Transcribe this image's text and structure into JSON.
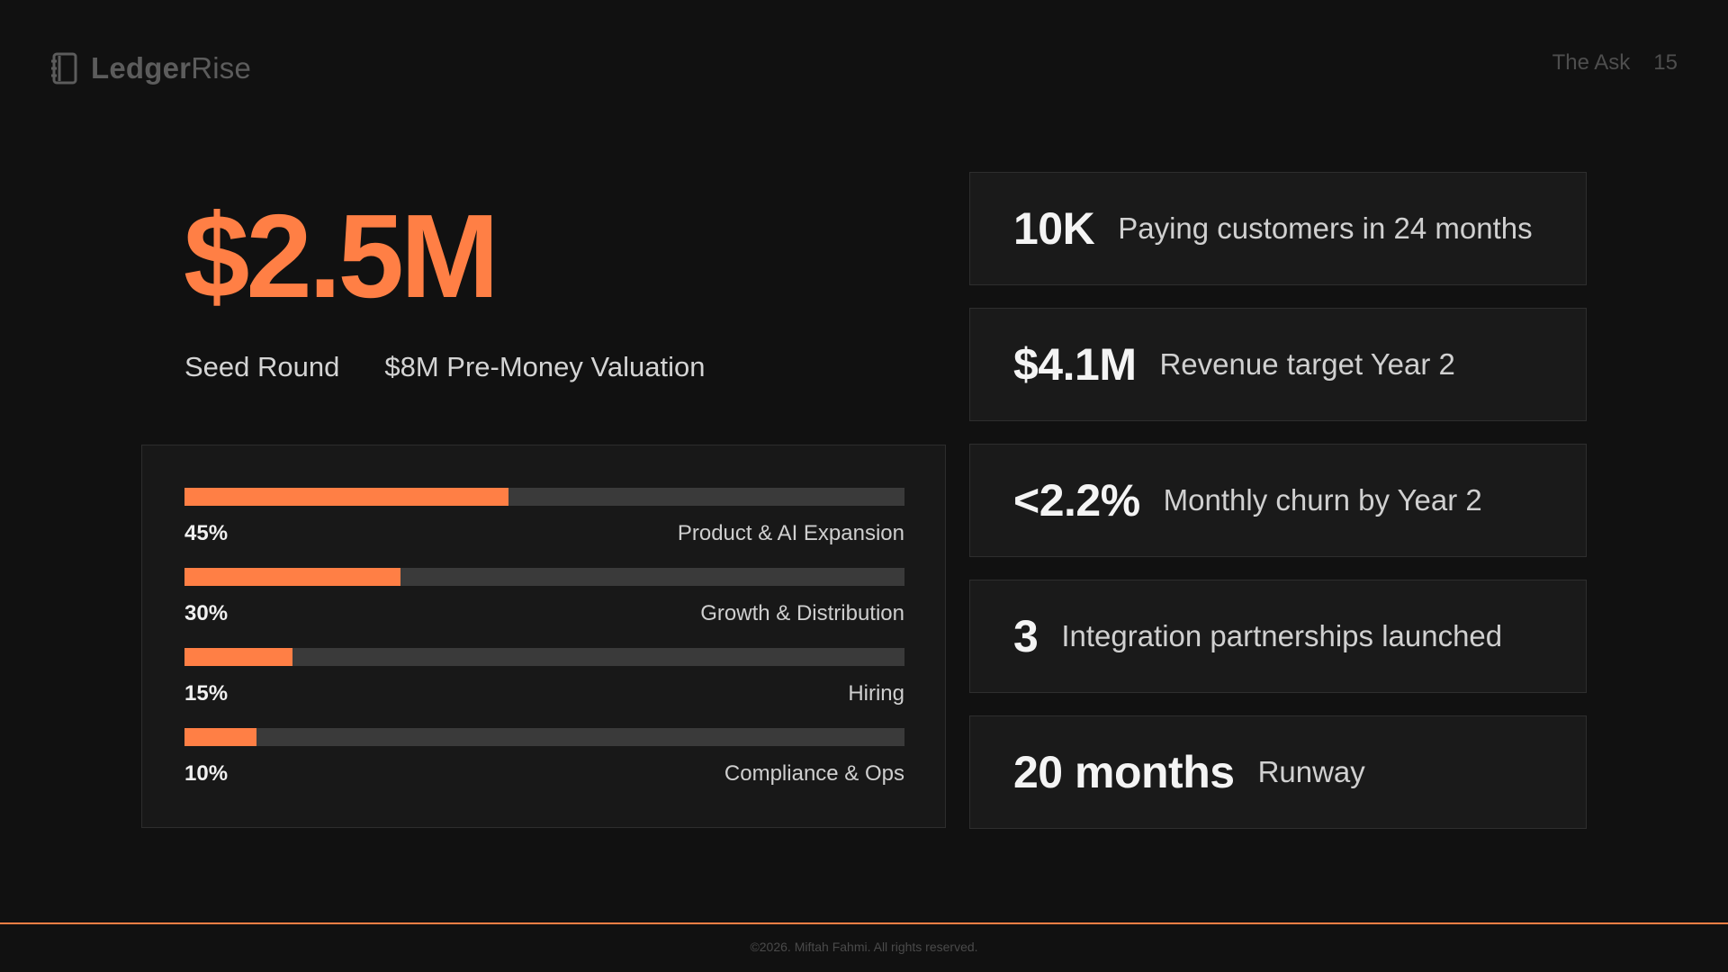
{
  "header": {
    "brand_bold": "Ledger",
    "brand_light": "Rise",
    "section": "The Ask",
    "page_number": "15"
  },
  "hero": {
    "amount": "$2.5M",
    "round": "Seed Round",
    "valuation": "$8M Pre-Money Valuation"
  },
  "allocation": [
    {
      "percent_label": "45%",
      "percent": 45,
      "label": "Product & AI Expansion"
    },
    {
      "percent_label": "30%",
      "percent": 30,
      "label": "Growth & Distribution"
    },
    {
      "percent_label": "15%",
      "percent": 15,
      "label": "Hiring"
    },
    {
      "percent_label": "10%",
      "percent": 10,
      "label": "Compliance & Ops"
    }
  ],
  "metrics": [
    {
      "value": "10K",
      "label": "Paying customers in 24 months"
    },
    {
      "value": "$4.1M",
      "label": "Revenue target Year 2"
    },
    {
      "value": "<2.2%",
      "label": "Monthly churn by Year 2"
    },
    {
      "value": "3",
      "label": "Integration partnerships launched"
    },
    {
      "value": "20 months",
      "label": "Runway"
    }
  ],
  "footer": {
    "copyright": "©2026. Miftah Fahmi. All rights reserved."
  },
  "colors": {
    "accent": "#ff7f45",
    "background": "#111111",
    "card": "#1a1a1a",
    "track": "#3a3a3a"
  },
  "icons": {
    "brand": "ledger-book-icon"
  }
}
